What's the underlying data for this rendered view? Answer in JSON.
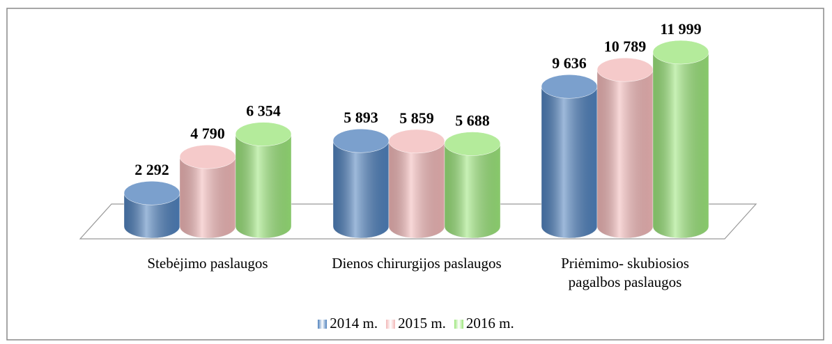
{
  "chart_data": {
    "type": "bar3d",
    "categories": [
      "Stebėjimo paslaugos",
      "Dienos chirurgijos paslaugos",
      "Priėmimo- skubiosios pagalbos paslaugos"
    ],
    "series": [
      {
        "name": "2014 m.",
        "color": "#4f81bd",
        "values": [
          2292,
          5893,
          9636
        ],
        "value_labels": [
          "2 292",
          "5 893",
          "9 636"
        ]
      },
      {
        "name": "2015 m.",
        "color": "#f2b8b8",
        "values": [
          4790,
          5859,
          10789
        ],
        "value_labels": [
          "4 790",
          "5 859",
          "10 789"
        ]
      },
      {
        "name": "2016 m.",
        "color": "#9be57a",
        "values": [
          6354,
          5688,
          11999
        ],
        "value_labels": [
          "6 354",
          "5 688",
          "11 999"
        ]
      }
    ],
    "legend": "bottom"
  }
}
